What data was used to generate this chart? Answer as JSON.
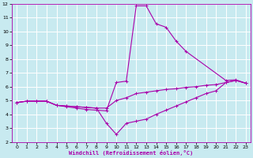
{
  "bg_color": "#c8eaf0",
  "grid_color": "#ffffff",
  "line_color": "#aa00aa",
  "xlim": [
    -0.5,
    23.5
  ],
  "ylim": [
    2,
    12
  ],
  "xticks": [
    0,
    1,
    2,
    3,
    4,
    5,
    6,
    7,
    8,
    9,
    10,
    11,
    12,
    13,
    14,
    15,
    16,
    17,
    18,
    19,
    20,
    21,
    22,
    23
  ],
  "yticks": [
    2,
    3,
    4,
    5,
    6,
    7,
    8,
    9,
    10,
    11,
    12
  ],
  "xlabel": "Windchill (Refroidissement éolien,°C)",
  "series": [
    {
      "x": [
        0,
        1,
        2,
        3,
        4,
        5,
        6,
        7,
        8,
        9,
        10,
        11,
        12,
        13,
        14,
        15,
        16,
        17,
        21,
        22,
        23
      ],
      "y": [
        4.85,
        4.95,
        4.95,
        4.95,
        4.65,
        4.55,
        4.45,
        4.35,
        4.3,
        4.25,
        6.3,
        6.4,
        11.85,
        11.85,
        10.55,
        10.3,
        9.3,
        8.55,
        6.45,
        6.5,
        6.25
      ]
    },
    {
      "x": [
        0,
        1,
        2,
        3,
        4,
        5,
        6,
        7,
        8,
        9,
        10,
        11,
        12,
        13,
        14,
        15,
        16,
        17,
        18,
        19,
        20,
        21,
        22,
        23
      ],
      "y": [
        4.85,
        4.95,
        4.95,
        4.95,
        4.65,
        4.6,
        4.55,
        4.5,
        4.45,
        4.45,
        5.0,
        5.2,
        5.5,
        5.6,
        5.7,
        5.8,
        5.85,
        5.95,
        6.0,
        6.1,
        6.15,
        6.3,
        6.45,
        6.25
      ]
    },
    {
      "x": [
        0,
        1,
        2,
        3,
        4,
        5,
        6,
        7,
        8,
        9,
        10,
        11,
        12,
        13,
        14,
        15,
        16,
        17,
        18,
        19,
        20,
        21,
        22,
        23
      ],
      "y": [
        4.85,
        4.95,
        4.95,
        4.95,
        4.65,
        4.6,
        4.55,
        4.5,
        4.45,
        3.35,
        2.55,
        3.35,
        3.5,
        3.65,
        4.0,
        4.3,
        4.6,
        4.9,
        5.2,
        5.5,
        5.7,
        6.3,
        6.45,
        6.25
      ]
    }
  ]
}
